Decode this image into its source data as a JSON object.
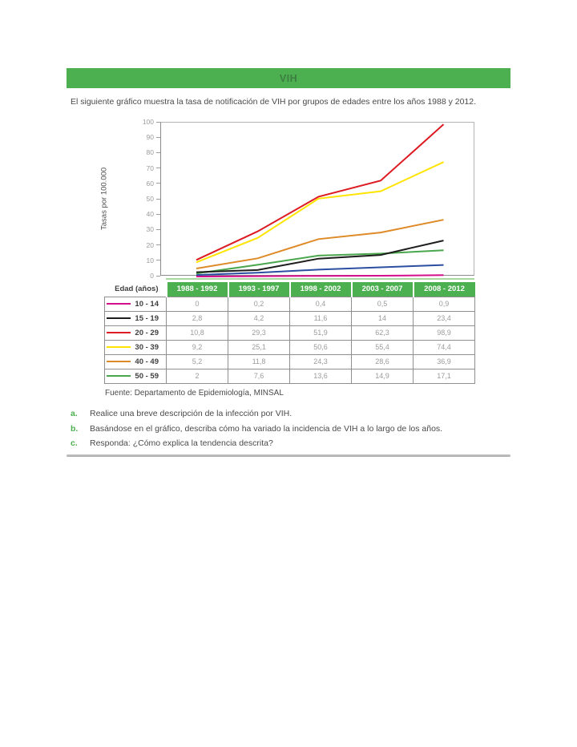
{
  "header": {
    "title": "VIH",
    "intro": "El siguiente gráfico muestra la tasa de notificación de VIH por grupos de edades entre los años 1988 y 2012."
  },
  "chart_data": {
    "type": "line",
    "title": "",
    "xlabel": "",
    "ylabel": "Tasas por 100.000",
    "ylim": [
      0,
      100
    ],
    "ytick_step": 10,
    "grid": false,
    "legend_position": "table left column (line swatches beside age groups)",
    "categories": [
      "1988 - 1992",
      "1993 - 1997",
      "1998 - 2002",
      "2003 - 2007",
      "2008 - 2012"
    ],
    "series": [
      {
        "name": "10 - 14",
        "color": "#d40f8c",
        "values": [
          0,
          0.2,
          0.4,
          0.5,
          0.9
        ]
      },
      {
        "name": "15 - 19",
        "color": "#1d1d1b",
        "values": [
          2.8,
          4.2,
          11.6,
          14,
          23.4
        ]
      },
      {
        "name": "20 - 29",
        "color": "#dd1b23",
        "values": [
          10.8,
          29.3,
          51.9,
          62.3,
          98.9
        ]
      },
      {
        "name": "30 - 39",
        "color": "#ffe400",
        "values": [
          9.2,
          25.1,
          50.6,
          55.4,
          74.4
        ]
      },
      {
        "name": "40 - 49",
        "color": "#dd8a27",
        "values": [
          5.2,
          11.8,
          24.3,
          28.6,
          36.9
        ]
      },
      {
        "name": "50 - 59",
        "color": "#4aa74e",
        "values": [
          2,
          7.6,
          13.6,
          14.9,
          17.1
        ]
      },
      {
        "name": "",
        "color": "#2b4ea1",
        "values": [
          1,
          2.5,
          4.5,
          6,
          7.5
        ]
      }
    ]
  },
  "table": {
    "corner_header": "Edad (años)",
    "column_headers": [
      "1988 - 1992",
      "1993 - 1997",
      "1998 - 2002",
      "2003 - 2007",
      "2008 - 2012"
    ],
    "rows": [
      {
        "label": "10 - 14",
        "color": "#d40f8c",
        "values": [
          "0",
          "0,2",
          "0,4",
          "0,5",
          "0,9"
        ]
      },
      {
        "label": "15 - 19",
        "color": "#1d1d1b",
        "values": [
          "2,8",
          "4,2",
          "11,6",
          "14",
          "23,4"
        ]
      },
      {
        "label": "20 - 29",
        "color": "#dd1b23",
        "values": [
          "10,8",
          "29,3",
          "51,9",
          "62,3",
          "98,9"
        ]
      },
      {
        "label": "30 - 39",
        "color": "#ffe400",
        "values": [
          "9,2",
          "25,1",
          "50,6",
          "55,4",
          "74,4"
        ]
      },
      {
        "label": "40 - 49",
        "color": "#dd8a27",
        "values": [
          "5,2",
          "11,8",
          "24,3",
          "28,6",
          "36,9"
        ]
      },
      {
        "label": "50 - 59",
        "color": "#4aa74e",
        "values": [
          "2",
          "7,6",
          "13,6",
          "14,9",
          "17,1"
        ]
      }
    ]
  },
  "source": "Fuente: Departamento de Epidemiología, MINSAL",
  "questions": [
    {
      "letter": "a.",
      "text": "Realice una breve descripción de la infección por VIH."
    },
    {
      "letter": "b.",
      "text": "Basándose en el gráfico, describa cómo ha variado la incidencia de VIH a lo largo de los años."
    },
    {
      "letter": "c.",
      "text": "Responda: ¿Cómo explica la tendencia descrita?"
    }
  ],
  "colors": {
    "accent_green": "#4caf50",
    "banner_text_green": "#3c7f40",
    "table_border_grey": "#8f8f8f",
    "muted_value_grey": "#9b9b9b",
    "body_text_grey": "#4a4a4a"
  }
}
